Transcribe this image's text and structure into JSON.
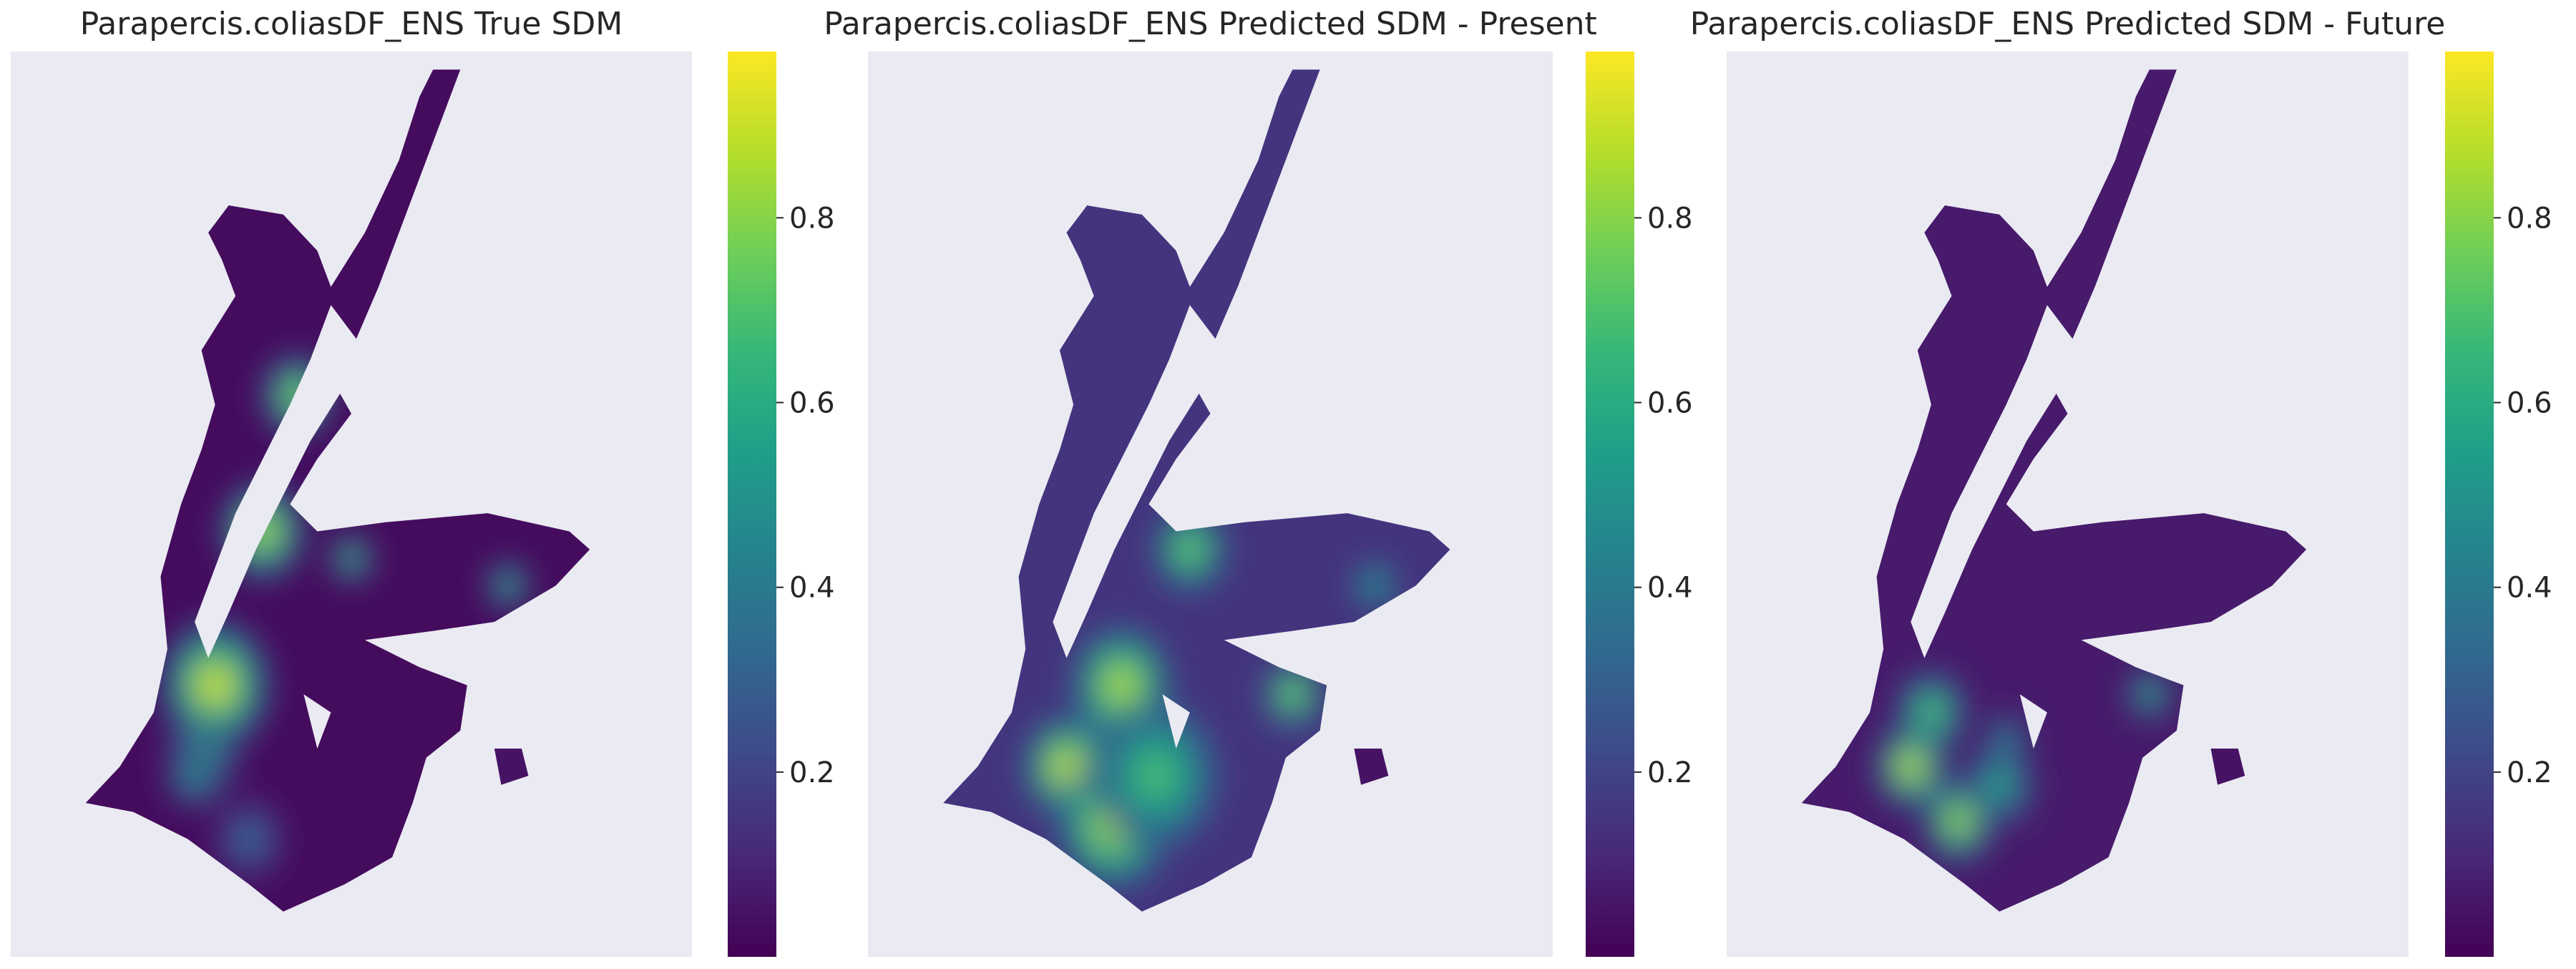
{
  "colors": {
    "background": "#eaeaf2",
    "page": "#ffffff",
    "text": "#262626",
    "colormap": [
      "#440154",
      "#482878",
      "#3e4989",
      "#31688e",
      "#26828e",
      "#1f9e89",
      "#35b779",
      "#6ece58",
      "#b5de2b",
      "#fde725"
    ]
  },
  "chart_data": [
    {
      "type": "heatmap",
      "title": "Parapercis.coliasDF_ENS True SDM",
      "colorbar": {
        "ticks": [
          0.2,
          0.4,
          0.6,
          0.8
        ],
        "tick_labels": [
          "0.2",
          "0.4",
          "0.6",
          "0.8"
        ],
        "range": [
          0.0,
          0.98
        ]
      },
      "hotspots": [
        {
          "x": 0.42,
          "y": 0.38,
          "v": 0.85,
          "r": 0.05
        },
        {
          "x": 0.37,
          "y": 0.53,
          "v": 0.9,
          "r": 0.06
        },
        {
          "x": 0.3,
          "y": 0.7,
          "v": 0.95,
          "r": 0.08
        },
        {
          "x": 0.28,
          "y": 0.78,
          "v": 0.8,
          "r": 0.05
        },
        {
          "x": 0.5,
          "y": 0.56,
          "v": 0.75,
          "r": 0.03
        },
        {
          "x": 0.73,
          "y": 0.59,
          "v": 0.7,
          "r": 0.03
        },
        {
          "x": 0.27,
          "y": 0.8,
          "v": 0.55,
          "r": 0.04
        },
        {
          "x": 0.35,
          "y": 0.87,
          "v": 0.35,
          "r": 0.05
        }
      ],
      "base_value": 0.03
    },
    {
      "type": "heatmap",
      "title": "Parapercis.coliasDF_ENS Predicted SDM - Present",
      "colorbar": {
        "ticks": [
          0.2,
          0.4,
          0.6,
          0.8
        ],
        "tick_labels": [
          "0.2",
          "0.4",
          "0.6",
          "0.8"
        ],
        "range": [
          0.0,
          0.98
        ]
      },
      "hotspots": [
        {
          "x": 0.47,
          "y": 0.55,
          "v": 0.8,
          "r": 0.05
        },
        {
          "x": 0.37,
          "y": 0.7,
          "v": 0.9,
          "r": 0.07
        },
        {
          "x": 0.29,
          "y": 0.79,
          "v": 0.95,
          "r": 0.06
        },
        {
          "x": 0.36,
          "y": 0.85,
          "v": 0.95,
          "r": 0.08
        },
        {
          "x": 0.42,
          "y": 0.8,
          "v": 0.7,
          "r": 0.09
        },
        {
          "x": 0.62,
          "y": 0.71,
          "v": 0.85,
          "r": 0.04
        },
        {
          "x": 0.74,
          "y": 0.59,
          "v": 0.6,
          "r": 0.03
        }
      ],
      "base_value": 0.15
    },
    {
      "type": "heatmap",
      "title": "Parapercis.coliasDF_ENS Predicted SDM - Future",
      "colorbar": {
        "ticks": [
          0.2,
          0.4,
          0.6,
          0.8
        ],
        "tick_labels": [
          "0.2",
          "0.4",
          "0.6",
          "0.8"
        ],
        "range": [
          0.0,
          0.98
        ]
      },
      "hotspots": [
        {
          "x": 0.3,
          "y": 0.73,
          "v": 0.75,
          "r": 0.05
        },
        {
          "x": 0.27,
          "y": 0.79,
          "v": 0.95,
          "r": 0.05
        },
        {
          "x": 0.34,
          "y": 0.85,
          "v": 0.9,
          "r": 0.05
        },
        {
          "x": 0.4,
          "y": 0.81,
          "v": 0.6,
          "r": 0.05
        },
        {
          "x": 0.62,
          "y": 0.71,
          "v": 0.7,
          "r": 0.03
        },
        {
          "x": 0.41,
          "y": 0.76,
          "v": 0.55,
          "r": 0.03
        }
      ],
      "base_value": 0.07
    }
  ]
}
